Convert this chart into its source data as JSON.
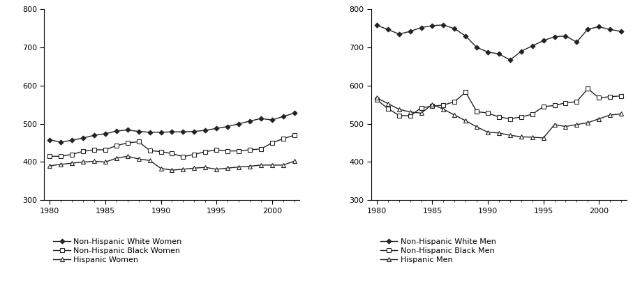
{
  "years": [
    1980,
    1981,
    1982,
    1983,
    1984,
    1985,
    1986,
    1987,
    1988,
    1989,
    1990,
    1991,
    1992,
    1993,
    1994,
    1995,
    1996,
    1997,
    1998,
    1999,
    2000,
    2001,
    2002
  ],
  "women": {
    "white": [
      458,
      452,
      457,
      463,
      470,
      474,
      481,
      484,
      480,
      478,
      478,
      479,
      479,
      480,
      483,
      488,
      493,
      500,
      507,
      514,
      510,
      519,
      528
    ],
    "black": [
      415,
      415,
      420,
      428,
      432,
      432,
      443,
      450,
      453,
      430,
      427,
      422,
      414,
      420,
      427,
      432,
      429,
      429,
      432,
      434,
      450,
      461,
      470
    ],
    "hispanic": [
      390,
      394,
      397,
      400,
      402,
      400,
      410,
      415,
      408,
      404,
      383,
      379,
      381,
      384,
      386,
      381,
      384,
      387,
      389,
      392,
      392,
      392,
      402
    ]
  },
  "men": {
    "white": [
      758,
      747,
      735,
      742,
      752,
      757,
      759,
      749,
      730,
      700,
      688,
      683,
      667,
      690,
      704,
      718,
      728,
      730,
      714,
      748,
      754,
      747,
      742
    ],
    "black": [
      563,
      540,
      522,
      521,
      542,
      546,
      549,
      558,
      583,
      532,
      528,
      518,
      513,
      518,
      525,
      545,
      548,
      555,
      558,
      592,
      568,
      571,
      573
    ],
    "hispanic": [
      568,
      553,
      538,
      531,
      528,
      551,
      538,
      523,
      508,
      492,
      478,
      476,
      470,
      466,
      465,
      463,
      498,
      493,
      498,
      503,
      513,
      523,
      526
    ]
  },
  "ylim": [
    300,
    800
  ],
  "yticks": [
    300,
    400,
    500,
    600,
    700,
    800
  ],
  "xlim": [
    1979.5,
    2002.5
  ],
  "xticks": [
    1980,
    1985,
    1990,
    1995,
    2000
  ],
  "line_color": "#222222",
  "background_color": "#ffffff",
  "legend_women": [
    "Non-Hispanic White Women",
    "Non-Hispanic Black Women",
    "Hispanic Women"
  ],
  "legend_men": [
    "Non-Hispanic White Men",
    "Non-Hispanic Black Men",
    "Hispanic Men"
  ],
  "marker_white": "D",
  "marker_black": "s",
  "marker_hispanic": "^",
  "markersize": 3.5,
  "linewidth": 1.0,
  "tick_fontsize": 8,
  "legend_fontsize": 8
}
